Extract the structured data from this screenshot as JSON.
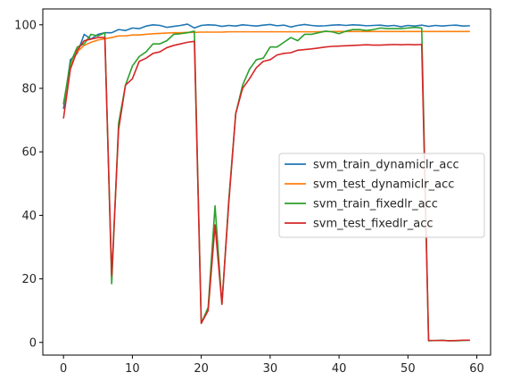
{
  "chart_data": {
    "type": "line",
    "title": "",
    "xlabel": "",
    "ylabel": "",
    "xlim": [
      -3,
      62
    ],
    "ylim": [
      -4,
      105
    ],
    "xticks": [
      0,
      10,
      20,
      30,
      40,
      50,
      60
    ],
    "yticks": [
      0,
      20,
      40,
      60,
      80,
      100
    ],
    "grid": false,
    "legend_position": "center-right",
    "x": [
      0,
      1,
      2,
      3,
      4,
      5,
      6,
      7,
      8,
      9,
      10,
      11,
      12,
      13,
      14,
      15,
      16,
      17,
      18,
      19,
      20,
      21,
      22,
      23,
      24,
      25,
      26,
      27,
      28,
      29,
      30,
      31,
      32,
      33,
      34,
      35,
      36,
      37,
      38,
      39,
      40,
      41,
      42,
      43,
      44,
      45,
      46,
      47,
      48,
      49,
      50,
      51,
      52,
      53,
      54,
      55,
      56,
      57,
      58,
      59
    ],
    "series": [
      {
        "name": "svm_train_dynamiclr_acc",
        "color": "#1f77b4",
        "values": [
          73.5,
          89,
          91,
          97,
          95.5,
          97,
          97.5,
          97.5,
          98.5,
          98.2,
          99,
          98.8,
          99.6,
          100,
          99.8,
          99.2,
          99.5,
          99.8,
          100.2,
          99,
          99.8,
          100,
          99.9,
          99.5,
          99.8,
          99.6,
          100,
          99.8,
          99.6,
          99.9,
          100.1,
          99.7,
          99.9,
          99.3,
          99.8,
          100.1,
          99.8,
          99.6,
          99.7,
          99.9,
          100,
          99.8,
          100,
          99.9,
          99.7,
          99.8,
          99.9,
          99.6,
          99.8,
          99.4,
          99.8,
          99.6,
          99.9,
          99.5,
          99.8,
          99.6,
          99.8,
          99.9,
          99.6,
          99.7
        ]
      },
      {
        "name": "svm_test_dynamiclr_acc",
        "color": "#ff7f0e",
        "values": [
          75,
          87,
          91.5,
          93.5,
          94.5,
          95.2,
          95.6,
          96,
          96.5,
          96.5,
          96.8,
          96.8,
          97,
          97.2,
          97.3,
          97.4,
          97.5,
          97.5,
          97.6,
          97.6,
          97.7,
          97.7,
          97.7,
          97.7,
          97.8,
          97.8,
          97.8,
          97.8,
          97.8,
          97.8,
          97.8,
          97.8,
          97.8,
          97.8,
          97.8,
          97.8,
          97.8,
          97.8,
          97.9,
          97.9,
          97.9,
          97.9,
          97.9,
          97.9,
          97.9,
          97.9,
          97.9,
          97.9,
          97.9,
          97.9,
          97.9,
          97.9,
          97.9,
          97.9,
          97.9,
          97.9,
          97.9,
          97.9,
          97.9,
          97.9
        ]
      },
      {
        "name": "svm_train_fixedlr_acc",
        "color": "#2ca02c",
        "values": [
          75,
          88,
          93,
          94,
          97,
          96.5,
          97.5,
          18.5,
          69,
          81,
          87,
          90,
          91.5,
          94,
          94,
          95,
          97,
          97.2,
          97.5,
          98,
          6,
          11,
          43,
          12,
          45,
          72,
          81,
          86,
          89,
          89.5,
          93,
          93,
          94.5,
          96,
          95,
          97,
          97,
          97.5,
          98,
          97.8,
          97.2,
          98,
          98.5,
          98.5,
          98.2,
          98.5,
          99,
          98.8,
          98.8,
          98.8,
          99,
          99.2,
          99,
          0.5,
          0.6,
          0.7,
          0.5,
          0.5,
          0.6,
          0.7
        ]
      },
      {
        "name": "svm_test_fixedlr_acc",
        "color": "#d62728",
        "values": [
          70.5,
          86,
          92,
          95,
          95.5,
          96,
          96,
          21,
          67,
          81,
          83,
          88.5,
          89.5,
          91,
          91.5,
          92.8,
          93.5,
          94,
          94.5,
          94.8,
          6,
          10,
          37,
          12,
          44,
          72,
          80,
          83,
          86.5,
          88.5,
          89,
          90.5,
          91,
          91.2,
          92,
          92.2,
          92.4,
          92.7,
          93,
          93.2,
          93.3,
          93.4,
          93.5,
          93.6,
          93.7,
          93.6,
          93.6,
          93.7,
          93.8,
          93.7,
          93.8,
          93.7,
          93.8,
          0.6,
          0.6,
          0.6,
          0.5,
          0.6,
          0.7,
          0.7
        ]
      }
    ]
  }
}
